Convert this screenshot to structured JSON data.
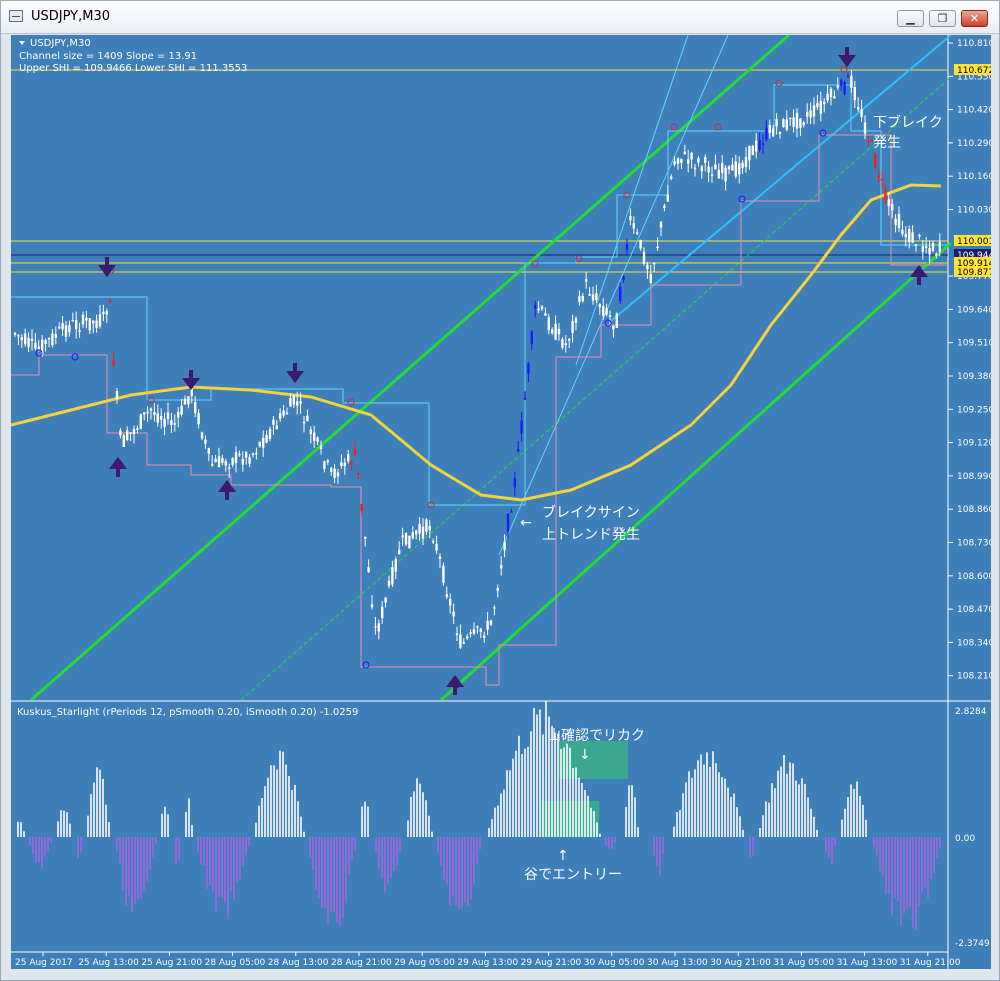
{
  "window": {
    "title": "USDJPY,M30",
    "controls": {
      "minimize": "▁",
      "restore": "❐",
      "close": "✕"
    }
  },
  "main_pane": {
    "symbol_label": "USDJPY,M30",
    "info_line1": "Channel size = 1409 Slope = 13.91",
    "info_line2": "Upper SHI = 109.9466 Lower SHI = 111.3553",
    "price_scale": [
      "110.810",
      "110.550",
      "110.420",
      "110.290",
      "110.160",
      "110.030",
      "109.770",
      "109.640",
      "109.510",
      "109.380",
      "109.250",
      "109.120",
      "108.990",
      "108.860",
      "108.730",
      "108.600",
      "108.470",
      "108.340",
      "108.210"
    ],
    "highlighted_prices": [
      {
        "value": "110.672",
        "bg": "#ffe23a"
      },
      {
        "value": "110.001",
        "bg": "#ffe23a"
      },
      {
        "value": "109.944",
        "bg": "#1a1f6a"
      },
      {
        "value": "109.914",
        "bg": "#ffe23a"
      },
      {
        "value": "109.877",
        "bg": "#ffe23a"
      }
    ],
    "annotations": {
      "down_break_1": "下ブレイク",
      "down_break_2": "発生",
      "break_sign_1": "ブレイクサイン",
      "break_sign_2": "上トレンド発生"
    }
  },
  "indicator_pane": {
    "label": "Kuskus_Starlight  (rPeriods 12, pSmooth 0.20, iSmooth 0.20)  -1.0259",
    "scale_top": "2.8284",
    "scale_zero": "0.00",
    "scale_bottom": "-2.3749",
    "annotations": {
      "take_profit": "山確認でリカク",
      "entry": "谷でエントリー"
    }
  },
  "time_axis": [
    "25 Aug 2017",
    "25 Aug 13:00",
    "25 Aug 21:00",
    "28 Aug 05:00",
    "28 Aug 13:00",
    "28 Aug 21:00",
    "29 Aug 05:00",
    "29 Aug 13:00",
    "29 Aug 21:00",
    "30 Aug 05:00",
    "30 Aug 13:00",
    "30 Aug 21:00",
    "31 Aug 05:00",
    "31 Aug 13:00",
    "31 Aug 21:00"
  ],
  "colors": {
    "background": "#3e7eb9",
    "candle": "#ffffff",
    "bear_break": "#ff1a1a",
    "bull_break": "#1a1aff",
    "moving_average": "#f2d33a",
    "channel": "#22dd33",
    "histogram_positive": "#ffffff",
    "histogram_negative": "#a264e0",
    "arrow": "#3a1b6e",
    "highlight_box": "#3aaf8a"
  }
}
